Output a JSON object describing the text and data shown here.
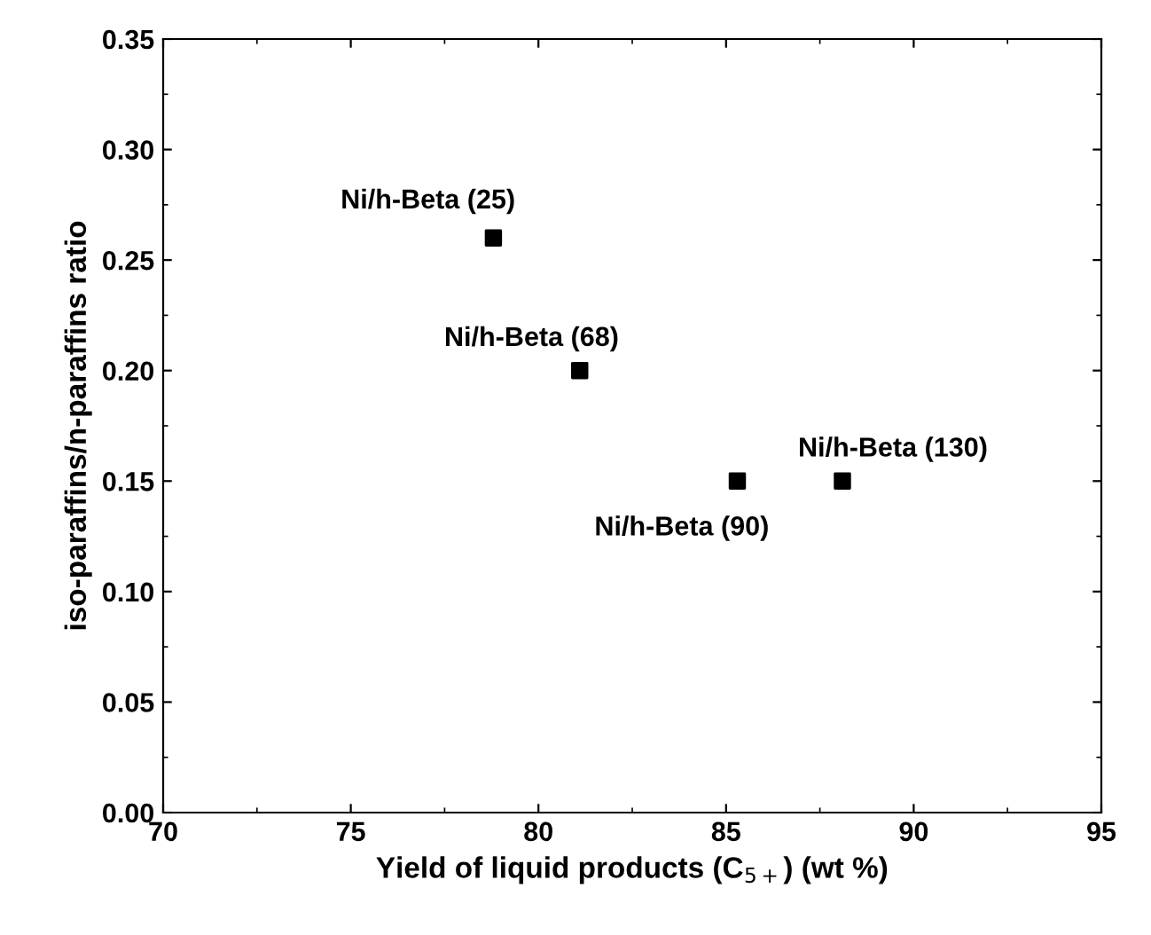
{
  "chart_data": {
    "type": "scatter",
    "xlabel": "Yield of liquid products (C$_{5+}$) (wt %)",
    "ylabel": "iso-paraffins/n-paraffins ratio",
    "x": [
      78.8,
      81.1,
      85.3,
      88.1
    ],
    "series": [
      {
        "color": "#000000",
        "values": [
          0.26,
          0.2,
          0.15,
          0.15
        ]
      }
    ],
    "annotations": [
      {
        "text": "Ni/h-Beta (25)",
        "x": 78.8,
        "y": 0.26
      },
      {
        "text": "Ni/h-Beta (68)",
        "x": 81.1,
        "y": 0.2
      },
      {
        "text": "Ni/h-Beta (90)",
        "x": 85.3,
        "y": 0.15
      },
      {
        "text": "Ni/h-Beta (130)",
        "x": 88.1,
        "y": 0.15
      }
    ],
    "xlim": [
      70,
      95
    ],
    "xticks": [
      70,
      75,
      80,
      85,
      90,
      95
    ],
    "ylim": [
      0,
      0.35
    ],
    "yticks": [
      {
        "value": 0,
        "label": "0.00"
      },
      {
        "value": 0.05,
        "label": "0.05"
      },
      {
        "value": 0.1,
        "label": "0.10"
      },
      {
        "value": 0.15,
        "label": "0.15"
      },
      {
        "value": 0.2,
        "label": "0.20"
      },
      {
        "value": 0.25,
        "label": "0.25"
      },
      {
        "value": 0.3,
        "label": "0.30"
      },
      {
        "value": 0.35,
        "label": "0.35"
      }
    ],
    "marker": "square",
    "grid": false,
    "legend": false
  }
}
